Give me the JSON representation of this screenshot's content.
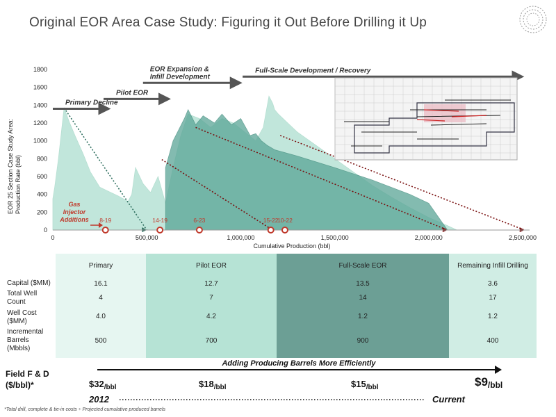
{
  "title": "Original EOR Area Case Study: Figuring it Out Before Drilling it Up",
  "chart_data": {
    "type": "area",
    "ylabel": "EOR 25 Section Case Study Area:\nProduction Rate (bbl)",
    "xlabel": "Cumulative Production (bbl)",
    "xlim": [
      0,
      2500000
    ],
    "ylim": [
      0,
      1800
    ],
    "x_ticks": [
      0,
      500000,
      1000000,
      1500000,
      2000000,
      2500000
    ],
    "x_tick_labels": [
      "0",
      "500,000",
      "1,000,000",
      "1,500,000",
      "2,000,000",
      "2,500,000"
    ],
    "y_ticks": [
      0,
      200,
      400,
      600,
      800,
      1000,
      1200,
      1400,
      1600,
      1800
    ],
    "y_tick_labels": [
      "0",
      "200",
      "400",
      "600",
      "800",
      "1000",
      "1200",
      "1400",
      "1600",
      "1800"
    ],
    "series": [
      {
        "color": "#8fd3be",
        "x": [
          0,
          10000,
          30000,
          60000,
          90000,
          120000,
          160000,
          200000,
          250000,
          300000,
          350000,
          400000,
          420000,
          440000,
          480000,
          520000,
          560000,
          600000,
          640000,
          680000,
          720000,
          780000,
          840000,
          900000,
          960000,
          1020000,
          1080000,
          1120000,
          1150000,
          1170000,
          1180000,
          1200000,
          1250000,
          1300000,
          1400000,
          1500000,
          1600000,
          1700000,
          1800000,
          1900000,
          2000000,
          2100000,
          2150000
        ],
        "y": [
          350,
          480,
          800,
          1370,
          1200,
          1050,
          860,
          650,
          480,
          430,
          380,
          320,
          400,
          700,
          520,
          420,
          600,
          300,
          700,
          1050,
          1300,
          1250,
          1150,
          1250,
          1200,
          1100,
          1000,
          1150,
          1500,
          1420,
          1350,
          1300,
          1200,
          1100,
          950,
          800,
          650,
          500,
          370,
          250,
          140,
          50,
          0
        ]
      },
      {
        "color": "#5aa596",
        "x": [
          600000,
          640000,
          700000,
          720000,
          760000,
          800000,
          860000,
          900000,
          950000,
          1000000,
          1050000,
          1080000,
          1110000,
          1140000,
          1180000,
          1300000,
          1500000,
          1700000,
          1900000,
          2000000,
          2100000
        ],
        "y": [
          700,
          1000,
          1250,
          1350,
          1180,
          1280,
          1200,
          1300,
          1180,
          1250,
          1060,
          1080,
          1000,
          950,
          900,
          830,
          700,
          560,
          400,
          300,
          0
        ]
      }
    ],
    "arrows": [
      {
        "label": "Primary Decline",
        "from_x": 0,
        "to_x": 310000,
        "y": 1360
      },
      {
        "label": "Pilot EOR",
        "from_x": 270000,
        "to_x": 630000,
        "y": 1470
      },
      {
        "label": "EOR Expansion &\nInfill Development",
        "from_x": 480000,
        "to_x": 1010000,
        "y": 1650
      },
      {
        "label": "Full-Scale Development / Recovery",
        "from_x": 1010000,
        "to_x": 2510000,
        "y": 1720
      }
    ],
    "declines": [
      {
        "from": [
          60000,
          1370
        ],
        "to": [
          500000,
          0
        ],
        "color": "#2f6f5f"
      },
      {
        "from": [
          580000,
          790
        ],
        "to": [
          1170000,
          0
        ],
        "color": "#7a1010"
      },
      {
        "from": [
          760000,
          1150
        ],
        "to": [
          2100000,
          0
        ],
        "color": "#7a1010"
      },
      {
        "from": [
          1210000,
          1060
        ],
        "to": [
          2510000,
          0
        ],
        "color": "#7a1010"
      }
    ],
    "annotation": "Gas\nInjector\nAdditions",
    "markers": [
      {
        "x": 280000,
        "label": "8-19"
      },
      {
        "x": 570000,
        "label": "14-19"
      },
      {
        "x": 780000,
        "label": "6-23"
      },
      {
        "x": 1160000,
        "label": "15-22"
      },
      {
        "x": 1235000,
        "label": "10-22"
      }
    ]
  },
  "table": {
    "columns": [
      "Primary",
      "Pilot EOR",
      "Full-Scale EOR",
      "Remaining Infill Drilling"
    ],
    "column_colors": [
      "#e6f6f1",
      "#b6e3d5",
      "#6c9f95",
      "#d0ede4"
    ],
    "rows": [
      {
        "label": "Capital ($MM)",
        "values": [
          "16.1",
          "12.7",
          "13.5",
          "3.6"
        ]
      },
      {
        "label": "Total Well\nCount",
        "values": [
          "4",
          "7",
          "14",
          "17"
        ]
      },
      {
        "label": "Well Cost\n($MM)",
        "values": [
          "4.0",
          "4.2",
          "1.2",
          "1.2"
        ]
      },
      {
        "label": "Incremental\nBarrels\n(Mbbls)",
        "values": [
          "500",
          "700",
          "900",
          "400"
        ]
      }
    ]
  },
  "fd": {
    "label": "Field F & D\n($/bbl)*",
    "arrow_label": "Adding Producing Barrels More Efficiently",
    "costs": [
      "$32",
      "$18",
      "$15",
      "$9"
    ],
    "unit": "/bbl",
    "start": "2012",
    "end": "Current"
  },
  "footnote": "*Total drill, complete & tie-in costs ÷ Projected cumulative produced barrels"
}
